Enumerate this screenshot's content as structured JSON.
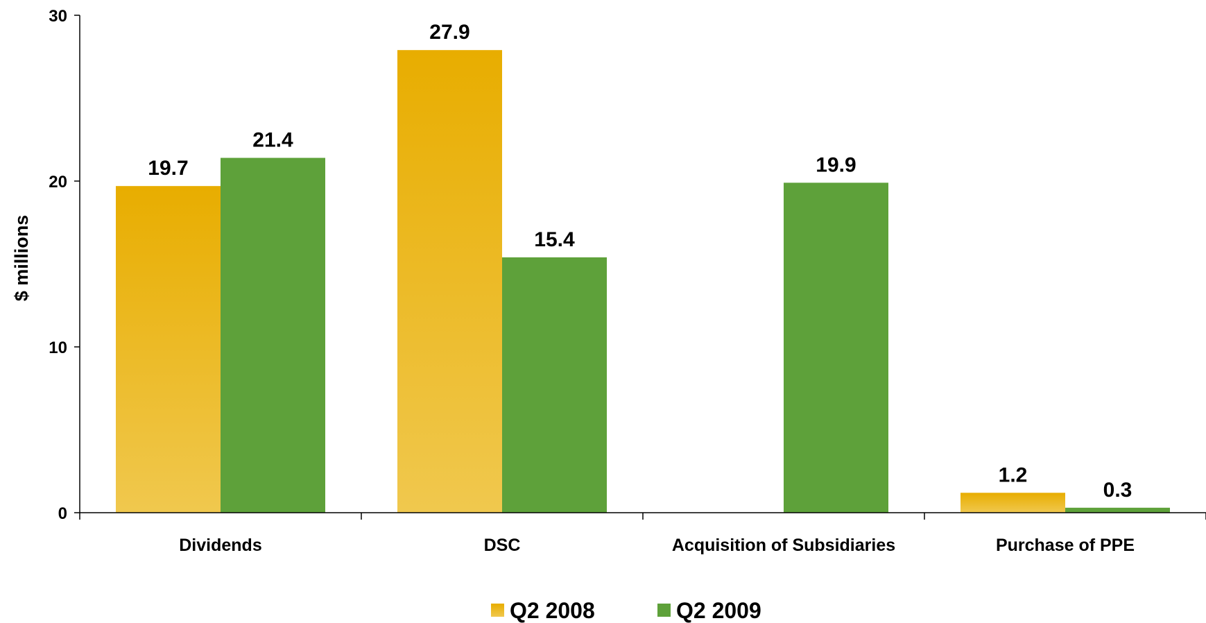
{
  "chart_data": {
    "type": "bar",
    "title": "",
    "xlabel": "",
    "ylabel": "$ millions",
    "ylim": [
      0,
      30
    ],
    "yticks": [
      0,
      10,
      20,
      30
    ],
    "categories": [
      "Dividends",
      "DSC",
      "Acquisition of Subsidiaries",
      "Purchase of PPE"
    ],
    "series": [
      {
        "name": "Q2 2008",
        "values": [
          19.7,
          27.9,
          null,
          1.2
        ],
        "labels": [
          "19.7",
          "27.9",
          "",
          "1.2"
        ],
        "color_top": "#e8ad00",
        "color_bottom": "#f0c84e"
      },
      {
        "name": "Q2 2009",
        "values": [
          21.4,
          15.4,
          19.9,
          0.3
        ],
        "labels": [
          "21.4",
          "15.4",
          "19.9",
          "0.3"
        ],
        "color_top": "#5ea13a",
        "color_bottom": "#5ea13a"
      }
    ],
    "grid": false,
    "legend_position": "bottom"
  }
}
